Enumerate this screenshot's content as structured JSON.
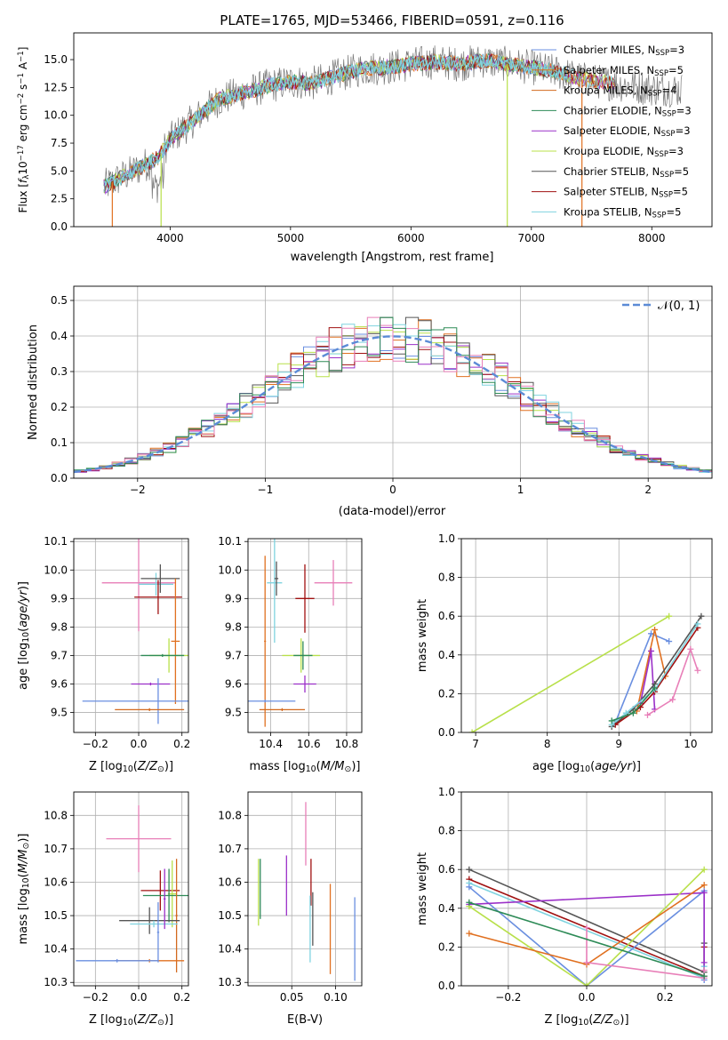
{
  "colors": {
    "chab_miles": "#6a8fe0",
    "salp_miles": "#e07020",
    "krou_miles": "#d2691e",
    "chab_elodie": "#2e8b57",
    "salp_elodie": "#9b30c8",
    "krou_elodie": "#b8e04a",
    "chab_stelib": "#555555",
    "salp_stelib": "#a01010",
    "krou_stelib": "#7fd3df",
    "pink": "#e87fb8",
    "normal": "#5b8bd6"
  },
  "chart_data": [
    {
      "id": "spectrum",
      "type": "line",
      "title": "PLATE=1765, MJD=53466, FIBERID=0591, z=0.116",
      "xlabel": "wavelength [Angstrom, rest frame]",
      "ylabel": "Flux [f$_\\lambda$10$^{-17}$ erg cm$^{-2}$ s$^{-1}$ A$^{-1}$]",
      "ylabel_parts": [
        "Flux [f",
        "λ",
        "10",
        "−17",
        " erg cm",
        "−2",
        " s",
        "−1",
        " A",
        "−1",
        "]"
      ],
      "xlim": [
        3200,
        8500
      ],
      "ylim": [
        0,
        17.4
      ],
      "xticks": [
        4000,
        5000,
        6000,
        7000,
        8000
      ],
      "yticks": [
        0.0,
        2.5,
        5.0,
        7.5,
        10.0,
        12.5,
        15.0
      ],
      "ytick_labels": [
        "0.0",
        "2.5",
        "5.0",
        "7.5",
        "10.0",
        "12.5",
        "15.0"
      ],
      "grid": false,
      "legend": "upper-right",
      "continuum": [
        [
          3450,
          3.6
        ],
        [
          3700,
          5.0
        ],
        [
          3900,
          6.2
        ],
        [
          4000,
          7.8
        ],
        [
          4200,
          9.6
        ],
        [
          4400,
          11.4
        ],
        [
          4600,
          12.0
        ],
        [
          4800,
          12.6
        ],
        [
          5000,
          13.0
        ],
        [
          5200,
          12.9
        ],
        [
          5400,
          13.6
        ],
        [
          5600,
          14.2
        ],
        [
          5800,
          14.3
        ],
        [
          6000,
          14.6
        ],
        [
          6200,
          14.8
        ],
        [
          6400,
          14.6
        ],
        [
          6600,
          14.9
        ],
        [
          6800,
          14.6
        ],
        [
          7000,
          14.3
        ],
        [
          7200,
          13.9
        ],
        [
          7400,
          13.3
        ],
        [
          7700,
          12.8
        ],
        [
          8000,
          12.4
        ],
        [
          8250,
          12.3
        ]
      ],
      "dropouts": [
        [
          3520,
          0.0
        ],
        [
          3925,
          0.0
        ],
        [
          6800,
          0.0
        ],
        [
          7420,
          0.0
        ]
      ],
      "series": [
        {
          "name": "Chabrier MILES, N$_{SSP}$=3",
          "label": "Chabrier MILES, N",
          "sub": "SSP",
          "n": "=3",
          "color": "#6a8fe0"
        },
        {
          "name": "Salpeter MILES, N$_{SSP}$=5",
          "label": "Salpeter MILES, N",
          "sub": "SSP",
          "n": "=5",
          "color": "#e07020"
        },
        {
          "name": "Kroupa MILES, N$_{SSP}$=4",
          "label": "Kroupa MILES, N",
          "sub": "SSP",
          "n": "=4",
          "color": "#d2691e"
        },
        {
          "name": "Chabrier ELODIE, N$_{SSP}$=3",
          "label": "Chabrier ELODIE, N",
          "sub": "SSP",
          "n": "=3",
          "color": "#2e8b57"
        },
        {
          "name": "Salpeter ELODIE, N$_{SSP}$=3",
          "label": "Salpeter ELODIE, N",
          "sub": "SSP",
          "n": "=3",
          "color": "#9b30c8"
        },
        {
          "name": "Kroupa ELODIE, N$_{SSP}$=3",
          "label": "Kroupa ELODIE, N",
          "sub": "SSP",
          "n": "=3",
          "color": "#b8e04a"
        },
        {
          "name": "Chabrier STELIB, N$_{SSP}$=5",
          "label": "Chabrier STELIB, N",
          "sub": "SSP",
          "n": "=5",
          "color": "#555555"
        },
        {
          "name": "Salpeter STELIB, N$_{SSP}$=5",
          "label": "Salpeter STELIB, N",
          "sub": "SSP",
          "n": "=5",
          "color": "#a01010"
        },
        {
          "name": "Kroupa STELIB, N$_{SSP}$=5",
          "label": "Kroupa STELIB, N",
          "sub": "SSP",
          "n": "=5",
          "color": "#7fd3df"
        }
      ]
    },
    {
      "id": "residuals",
      "type": "bar",
      "xlabel": "(data-model)/error",
      "ylabel": "Normed distribution",
      "xlim": [
        -2.5,
        2.5
      ],
      "ylim": [
        0,
        0.54
      ],
      "xticks": [
        -2,
        -1,
        0,
        1,
        2
      ],
      "xtick_labels": [
        "−2",
        "−1",
        "0",
        "1",
        "2"
      ],
      "yticks": [
        0.0,
        0.1,
        0.2,
        0.3,
        0.4,
        0.5
      ],
      "ytick_labels": [
        "0.0",
        "0.1",
        "0.2",
        "0.3",
        "0.4",
        "0.5"
      ],
      "grid": true,
      "legend": "upper-right",
      "bin_width": 0.1,
      "reference_curve": {
        "name": "$\\mathcal{N}(0,1)$",
        "label": "𝒩(0, 1)",
        "color": "#5b8bd6",
        "mean": 0,
        "sigma": 1
      },
      "histogram_colors": [
        "#6a8fe0",
        "#e07020",
        "#b8e04a",
        "#9b30c8",
        "#555555",
        "#a01010",
        "#7fd3df",
        "#e87fb8",
        "#2e8b57"
      ]
    },
    {
      "id": "age_vs_Z",
      "type": "scatter",
      "xlabel": "Z [log$_{10}$(Z/Z$_\\odot$)]",
      "ylabel": "age  [log$_{10}$(age/yr)]",
      "xlim": [
        -0.3,
        0.23
      ],
      "ylim": [
        9.43,
        10.11
      ],
      "xticks": [
        -0.2,
        0.0,
        0.2
      ],
      "xtick_labels": [
        "−0.2",
        "0.0",
        "0.2"
      ],
      "yticks": [
        9.5,
        9.6,
        9.7,
        9.8,
        9.9,
        10.0,
        10.1
      ],
      "ytick_labels": [
        "9.5",
        "9.6",
        "9.7",
        "9.8",
        "9.9",
        "10.0",
        "10.1"
      ],
      "grid": true,
      "points": [
        {
          "x": 0.0,
          "y": 9.955,
          "xerr": 0.17,
          "yerr": 0.17,
          "color": "#e87fb8"
        },
        {
          "x": 0.08,
          "y": 9.95,
          "xerr": 0.08,
          "yerr": 0.04,
          "color": "#7fd3df"
        },
        {
          "x": 0.1,
          "y": 9.97,
          "xerr": 0.09,
          "yerr": 0.05,
          "color": "#555555"
        },
        {
          "x": 0.09,
          "y": 9.905,
          "xerr": 0.11,
          "yerr": 0.06,
          "color": "#a01010"
        },
        {
          "x": 0.17,
          "y": 9.75,
          "xerr": 0.02,
          "yerr": 0.22,
          "color": "#e07020"
        },
        {
          "x": 0.14,
          "y": 9.7,
          "xerr": 0.09,
          "yerr": 0.06,
          "color": "#b8e04a"
        },
        {
          "x": 0.11,
          "y": 9.7,
          "xerr": 0.1,
          "yerr": 0.005,
          "color": "#2e8b57"
        },
        {
          "x": 0.055,
          "y": 9.6,
          "xerr": 0.09,
          "yerr": 0.005,
          "color": "#9b30c8"
        },
        {
          "x": 0.09,
          "y": 9.54,
          "xerr": 0.35,
          "yerr": 0.08,
          "color": "#6a8fe0"
        },
        {
          "x": 0.05,
          "y": 9.51,
          "xerr": 0.16,
          "yerr": 0.005,
          "color": "#d2691e"
        }
      ]
    },
    {
      "id": "age_vs_mass",
      "type": "scatter",
      "xlabel": "mass [log$_{10}$(M/M$_\\odot$)]",
      "ylabel": "",
      "xlim": [
        10.28,
        10.88
      ],
      "ylim": [
        9.43,
        10.11
      ],
      "xticks": [
        10.4,
        10.6,
        10.8
      ],
      "xtick_labels": [
        "10.4",
        "10.6",
        "10.8"
      ],
      "yticks": [
        9.5,
        9.6,
        9.7,
        9.8,
        9.9,
        10.0,
        10.1
      ],
      "ytick_labels": [
        "9.5",
        "9.6",
        "9.7",
        "9.8",
        "9.9",
        "10.0",
        "10.1"
      ],
      "grid": true,
      "points": [
        {
          "x": 10.73,
          "y": 9.955,
          "xerr": 0.1,
          "yerr": 0.08,
          "color": "#e87fb8"
        },
        {
          "x": 10.42,
          "y": 9.955,
          "xerr": 0.04,
          "yerr": 0.21,
          "color": "#7fd3df"
        },
        {
          "x": 10.43,
          "y": 9.97,
          "xerr": 0.01,
          "yerr": 0.06,
          "color": "#555555"
        },
        {
          "x": 10.58,
          "y": 9.9,
          "xerr": 0.05,
          "yerr": 0.12,
          "color": "#a01010"
        },
        {
          "x": 10.37,
          "y": 9.75,
          "xerr": 0.005,
          "yerr": 0.3,
          "color": "#e07020"
        },
        {
          "x": 10.56,
          "y": 9.7,
          "xerr": 0.1,
          "yerr": 0.06,
          "color": "#b8e04a"
        },
        {
          "x": 10.57,
          "y": 9.7,
          "xerr": 0.05,
          "yerr": 0.05,
          "color": "#2e8b57"
        },
        {
          "x": 10.58,
          "y": 9.6,
          "xerr": 0.06,
          "yerr": 0.03,
          "color": "#9b30c8"
        },
        {
          "x": 10.37,
          "y": 9.54,
          "xerr": 0.16,
          "yerr": 0.005,
          "color": "#6a8fe0"
        },
        {
          "x": 10.46,
          "y": 9.51,
          "xerr": 0.12,
          "yerr": 0.005,
          "color": "#d2691e"
        }
      ]
    },
    {
      "id": "weight_vs_age",
      "type": "line",
      "xlabel": "age  [log$_{10}$(age/yr)]",
      "ylabel": "mass weight",
      "xlim": [
        6.8,
        10.3
      ],
      "ylim": [
        0,
        1.0
      ],
      "xticks": [
        7,
        8,
        9,
        10
      ],
      "xtick_labels": [
        "7",
        "8",
        "9",
        "10"
      ],
      "yticks": [
        0.0,
        0.2,
        0.4,
        0.6,
        0.8,
        1.0
      ],
      "ytick_labels": [
        "0.0",
        "0.2",
        "0.4",
        "0.6",
        "0.8",
        "1.0"
      ],
      "grid": true,
      "series": [
        {
          "color": "#b8e04a",
          "x": [
            6.95,
            9.7
          ],
          "y": [
            0.0,
            0.6
          ]
        },
        {
          "color": "#6a8fe0",
          "x": [
            8.95,
            9.45,
            9.7
          ],
          "y": [
            0.05,
            0.51,
            0.47
          ]
        },
        {
          "color": "#e07020",
          "x": [
            9.25,
            9.5,
            9.65
          ],
          "y": [
            0.11,
            0.53,
            0.29
          ]
        },
        {
          "color": "#9b30c8",
          "x": [
            9.3,
            9.45,
            9.5
          ],
          "y": [
            0.15,
            0.42,
            0.12
          ]
        },
        {
          "color": "#e87fb8",
          "x": [
            9.4,
            9.75,
            10.0,
            10.1
          ],
          "y": [
            0.09,
            0.17,
            0.43,
            0.32
          ]
        },
        {
          "color": "#555555",
          "x": [
            8.9,
            9.2,
            9.5,
            10.15
          ],
          "y": [
            0.03,
            0.12,
            0.25,
            0.6
          ]
        },
        {
          "color": "#a01010",
          "x": [
            8.95,
            9.3,
            9.5,
            10.1
          ],
          "y": [
            0.04,
            0.13,
            0.21,
            0.54
          ]
        },
        {
          "color": "#7fd3df",
          "x": [
            8.9,
            9.1,
            9.5,
            10.1
          ],
          "y": [
            0.04,
            0.1,
            0.22,
            0.56
          ]
        },
        {
          "color": "#2e8b57",
          "x": [
            8.9,
            9.2,
            9.5
          ],
          "y": [
            0.06,
            0.1,
            0.23
          ]
        }
      ]
    },
    {
      "id": "mass_vs_Z",
      "type": "scatter",
      "xlabel": "Z [log$_{10}$(Z/Z$_\\odot$)]",
      "ylabel": "mass [log$_{10}$(M/M$_\\odot$)]",
      "xlim": [
        -0.3,
        0.23
      ],
      "ylim": [
        10.29,
        10.87
      ],
      "xticks": [
        -0.2,
        0.0,
        0.2
      ],
      "xtick_labels": [
        "−0.2",
        "0.0",
        "0.2"
      ],
      "yticks": [
        10.3,
        10.4,
        10.5,
        10.6,
        10.7,
        10.8
      ],
      "ytick_labels": [
        "10.3",
        "10.4",
        "10.5",
        "10.6",
        "10.7",
        "10.8"
      ],
      "grid": true,
      "points": [
        {
          "x": 0.0,
          "y": 10.73,
          "xerr": 0.15,
          "yerr": 0.1,
          "color": "#e87fb8"
        },
        {
          "x": 0.1,
          "y": 10.575,
          "xerr": 0.09,
          "yerr": 0.06,
          "color": "#a01010"
        },
        {
          "x": 0.155,
          "y": 10.565,
          "xerr": 0.02,
          "yerr": 0.1,
          "color": "#b8e04a"
        },
        {
          "x": 0.14,
          "y": 10.56,
          "xerr": 0.12,
          "yerr": 0.08,
          "color": "#2e8b57"
        },
        {
          "x": 0.175,
          "y": 10.5,
          "xerr": 0.005,
          "yerr": 0.17,
          "color": "#d2691e"
        },
        {
          "x": 0.05,
          "y": 10.485,
          "xerr": 0.14,
          "yerr": 0.04,
          "color": "#555555"
        },
        {
          "x": 0.07,
          "y": 10.475,
          "xerr": 0.11,
          "yerr": 0.01,
          "color": "#7fd3df"
        },
        {
          "x": 0.12,
          "y": 10.55,
          "xerr": 0.005,
          "yerr": 0.09,
          "color": "#9b30c8"
        },
        {
          "x": 0.05,
          "y": 10.365,
          "xerr": 0.16,
          "yerr": 0.005,
          "color": "#e07020"
        },
        {
          "x": -0.1,
          "y": 10.365,
          "xerr": 0.19,
          "yerr": 0.005,
          "color": "#6a8fe0"
        },
        {
          "x": 0.09,
          "y": 10.45,
          "xerr": 0.005,
          "yerr": 0.09,
          "color": "#6a8fe0"
        }
      ]
    },
    {
      "id": "mass_vs_ebv",
      "type": "scatter",
      "xlabel": "E(B-V)",
      "ylabel": "",
      "xlim": [
        0.0,
        0.13
      ],
      "ylim": [
        10.29,
        10.87
      ],
      "xticks": [
        0.05,
        0.1
      ],
      "xtick_labels": [
        "0.05",
        "0.10"
      ],
      "yticks": [
        10.3,
        10.4,
        10.5,
        10.6,
        10.7,
        10.8
      ],
      "ytick_labels": [
        "10.3",
        "10.4",
        "10.5",
        "10.6",
        "10.7",
        "10.8"
      ],
      "grid": true,
      "points": [
        {
          "x": 0.012,
          "y": 10.57,
          "xerr": 0.0,
          "yerr": 0.1,
          "color": "#b8e04a"
        },
        {
          "x": 0.014,
          "y": 10.58,
          "xerr": 0.0,
          "yerr": 0.09,
          "color": "#2e8b57"
        },
        {
          "x": 0.044,
          "y": 10.59,
          "xerr": 0.0,
          "yerr": 0.09,
          "color": "#9b30c8"
        },
        {
          "x": 0.066,
          "y": 10.745,
          "xerr": 0.0,
          "yerr": 0.095,
          "color": "#e87fb8"
        },
        {
          "x": 0.072,
          "y": 10.6,
          "xerr": 0.0,
          "yerr": 0.07,
          "color": "#a01010"
        },
        {
          "x": 0.074,
          "y": 10.49,
          "xerr": 0.0,
          "yerr": 0.08,
          "color": "#555555"
        },
        {
          "x": 0.071,
          "y": 10.46,
          "xerr": 0.0,
          "yerr": 0.1,
          "color": "#7fd3df"
        },
        {
          "x": 0.094,
          "y": 10.46,
          "xerr": 0.0,
          "yerr": 0.135,
          "color": "#e07020"
        },
        {
          "x": 0.122,
          "y": 10.43,
          "xerr": 0.0,
          "yerr": 0.125,
          "color": "#6a8fe0"
        }
      ]
    },
    {
      "id": "weight_vs_Z",
      "type": "line",
      "xlabel": "Z [log$_{10}$(Z/Z$_\\odot$)]",
      "ylabel": "mass weight",
      "xlim": [
        -0.32,
        0.32
      ],
      "ylim": [
        0,
        1.0
      ],
      "xticks": [
        -0.2,
        0.0,
        0.2
      ],
      "xtick_labels": [
        "−0.2",
        "0.0",
        "0.2"
      ],
      "yticks": [
        0.0,
        0.2,
        0.4,
        0.6,
        0.8,
        1.0
      ],
      "ytick_labels": [
        "0.0",
        "0.2",
        "0.4",
        "0.6",
        "0.8",
        "1.0"
      ],
      "grid": true,
      "series": [
        {
          "color": "#555555",
          "x": [
            -0.3,
            0.3,
            0.3
          ],
          "y": [
            0.6,
            0.07,
            0.22
          ]
        },
        {
          "color": "#a01010",
          "x": [
            -0.3,
            0.3,
            0.3
          ],
          "y": [
            0.55,
            0.05,
            0.2
          ]
        },
        {
          "color": "#7fd3df",
          "x": [
            -0.3,
            0.3,
            0.3
          ],
          "y": [
            0.53,
            0.04,
            0.1
          ]
        },
        {
          "color": "#6a8fe0",
          "x": [
            -0.3,
            0.0,
            0.3,
            0.3
          ],
          "y": [
            0.51,
            0.0,
            0.49,
            0.03
          ]
        },
        {
          "color": "#9b30c8",
          "x": [
            -0.3,
            0.3,
            0.3
          ],
          "y": [
            0.42,
            0.48,
            0.12
          ]
        },
        {
          "color": "#b8e04a",
          "x": [
            -0.3,
            0.0,
            0.3
          ],
          "y": [
            0.41,
            0.0,
            0.6
          ]
        },
        {
          "color": "#e07020",
          "x": [
            -0.3,
            0.0,
            0.3
          ],
          "y": [
            0.27,
            0.11,
            0.52
          ]
        },
        {
          "color": "#e87fb8",
          "x": [
            0.0,
            0.0,
            0.3,
            0.3
          ],
          "y": [
            0.3,
            0.12,
            0.04,
            0.08
          ]
        },
        {
          "color": "#2e8b57",
          "x": [
            -0.3,
            0.3
          ],
          "y": [
            0.43,
            0.05
          ]
        }
      ]
    }
  ]
}
